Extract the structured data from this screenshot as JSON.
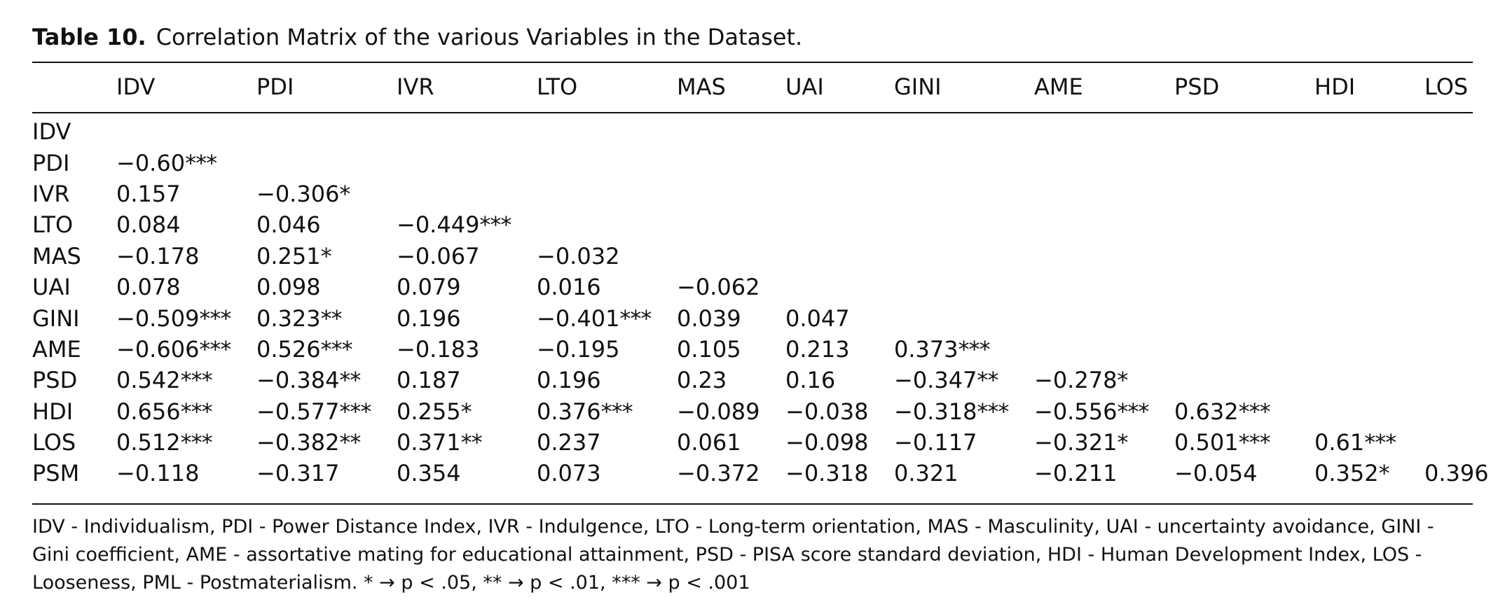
{
  "caption": {
    "label": "Table 10.",
    "title": "Correlation Matrix of the various Variables in the Dataset."
  },
  "columns": [
    "",
    "IDV",
    "PDI",
    "IVR",
    "LTO",
    "MAS",
    "UAI",
    "GINI",
    "AME",
    "PSD",
    "HDI",
    "LOS"
  ],
  "rows": [
    {
      "label": "IDV",
      "cells": []
    },
    {
      "label": "PDI",
      "cells": [
        [
          "−0.60",
          "***"
        ]
      ]
    },
    {
      "label": "IVR",
      "cells": [
        [
          "0.157",
          ""
        ],
        [
          "−0.306",
          "*"
        ]
      ]
    },
    {
      "label": "LTO",
      "cells": [
        [
          "0.084",
          ""
        ],
        [
          "0.046",
          ""
        ],
        [
          "−0.449",
          "***"
        ]
      ]
    },
    {
      "label": "MAS",
      "cells": [
        [
          "−0.178",
          ""
        ],
        [
          "0.251",
          "*"
        ],
        [
          "−0.067",
          ""
        ],
        [
          "−0.032",
          ""
        ]
      ]
    },
    {
      "label": "UAI",
      "cells": [
        [
          "0.078",
          ""
        ],
        [
          "0.098",
          ""
        ],
        [
          "0.079",
          ""
        ],
        [
          "0.016",
          ""
        ],
        [
          "−0.062",
          ""
        ]
      ]
    },
    {
      "label": "GINI",
      "cells": [
        [
          "−0.509",
          "***"
        ],
        [
          "0.323",
          "**"
        ],
        [
          "0.196",
          ""
        ],
        [
          "−0.401",
          "***"
        ],
        [
          "0.039",
          ""
        ],
        [
          "0.047",
          ""
        ]
      ]
    },
    {
      "label": "AME",
      "cells": [
        [
          "−0.606",
          "***"
        ],
        [
          "0.526",
          "***"
        ],
        [
          "−0.183",
          ""
        ],
        [
          "−0.195",
          ""
        ],
        [
          "0.105",
          ""
        ],
        [
          "0.213",
          ""
        ],
        [
          "0.373",
          "***"
        ]
      ]
    },
    {
      "label": "PSD",
      "cells": [
        [
          "0.542",
          "***"
        ],
        [
          "−0.384",
          "**"
        ],
        [
          "0.187",
          ""
        ],
        [
          "0.196",
          ""
        ],
        [
          "0.23",
          ""
        ],
        [
          "0.16",
          ""
        ],
        [
          "−0.347",
          "**"
        ],
        [
          "−0.278",
          "*"
        ]
      ]
    },
    {
      "label": "HDI",
      "cells": [
        [
          "0.656",
          "***"
        ],
        [
          "−0.577",
          "***"
        ],
        [
          "0.255",
          "*"
        ],
        [
          "0.376",
          "***"
        ],
        [
          "−0.089",
          ""
        ],
        [
          "−0.038",
          ""
        ],
        [
          "−0.318",
          "***"
        ],
        [
          "−0.556",
          "***"
        ],
        [
          "0.632",
          "***"
        ]
      ]
    },
    {
      "label": "LOS",
      "cells": [
        [
          "0.512",
          "***"
        ],
        [
          "−0.382",
          "**"
        ],
        [
          "0.371",
          "**"
        ],
        [
          "0.237",
          ""
        ],
        [
          "0.061",
          ""
        ],
        [
          "−0.098",
          ""
        ],
        [
          "−0.117",
          ""
        ],
        [
          "−0.321",
          "*"
        ],
        [
          "0.501",
          "***"
        ],
        [
          "0.61",
          "***"
        ]
      ]
    },
    {
      "label": "PSM",
      "cells": [
        [
          "−0.118",
          ""
        ],
        [
          "−0.317",
          ""
        ],
        [
          "0.354",
          ""
        ],
        [
          "0.073",
          ""
        ],
        [
          "−0.372",
          ""
        ],
        [
          "−0.318",
          ""
        ],
        [
          "0.321",
          ""
        ],
        [
          "−0.211",
          ""
        ],
        [
          "−0.054",
          ""
        ],
        [
          "0.352",
          "*"
        ],
        [
          "0.396",
          ""
        ]
      ]
    }
  ],
  "footnote": "IDV - Individualism, PDI - Power Distance Index, IVR - Indulgence, LTO - Long-term orientation, MAS - Masculinity, UAI - uncertainty avoidance, GINI - Gini coefficient, AME - assortative mating for educational attainment, PSD - PISA score standard deviation, HDI - Human Development Index, LOS - Looseness, PML - Postmaterialism. * → p < .05, ** → p < .01, *** → p < .001"
}
